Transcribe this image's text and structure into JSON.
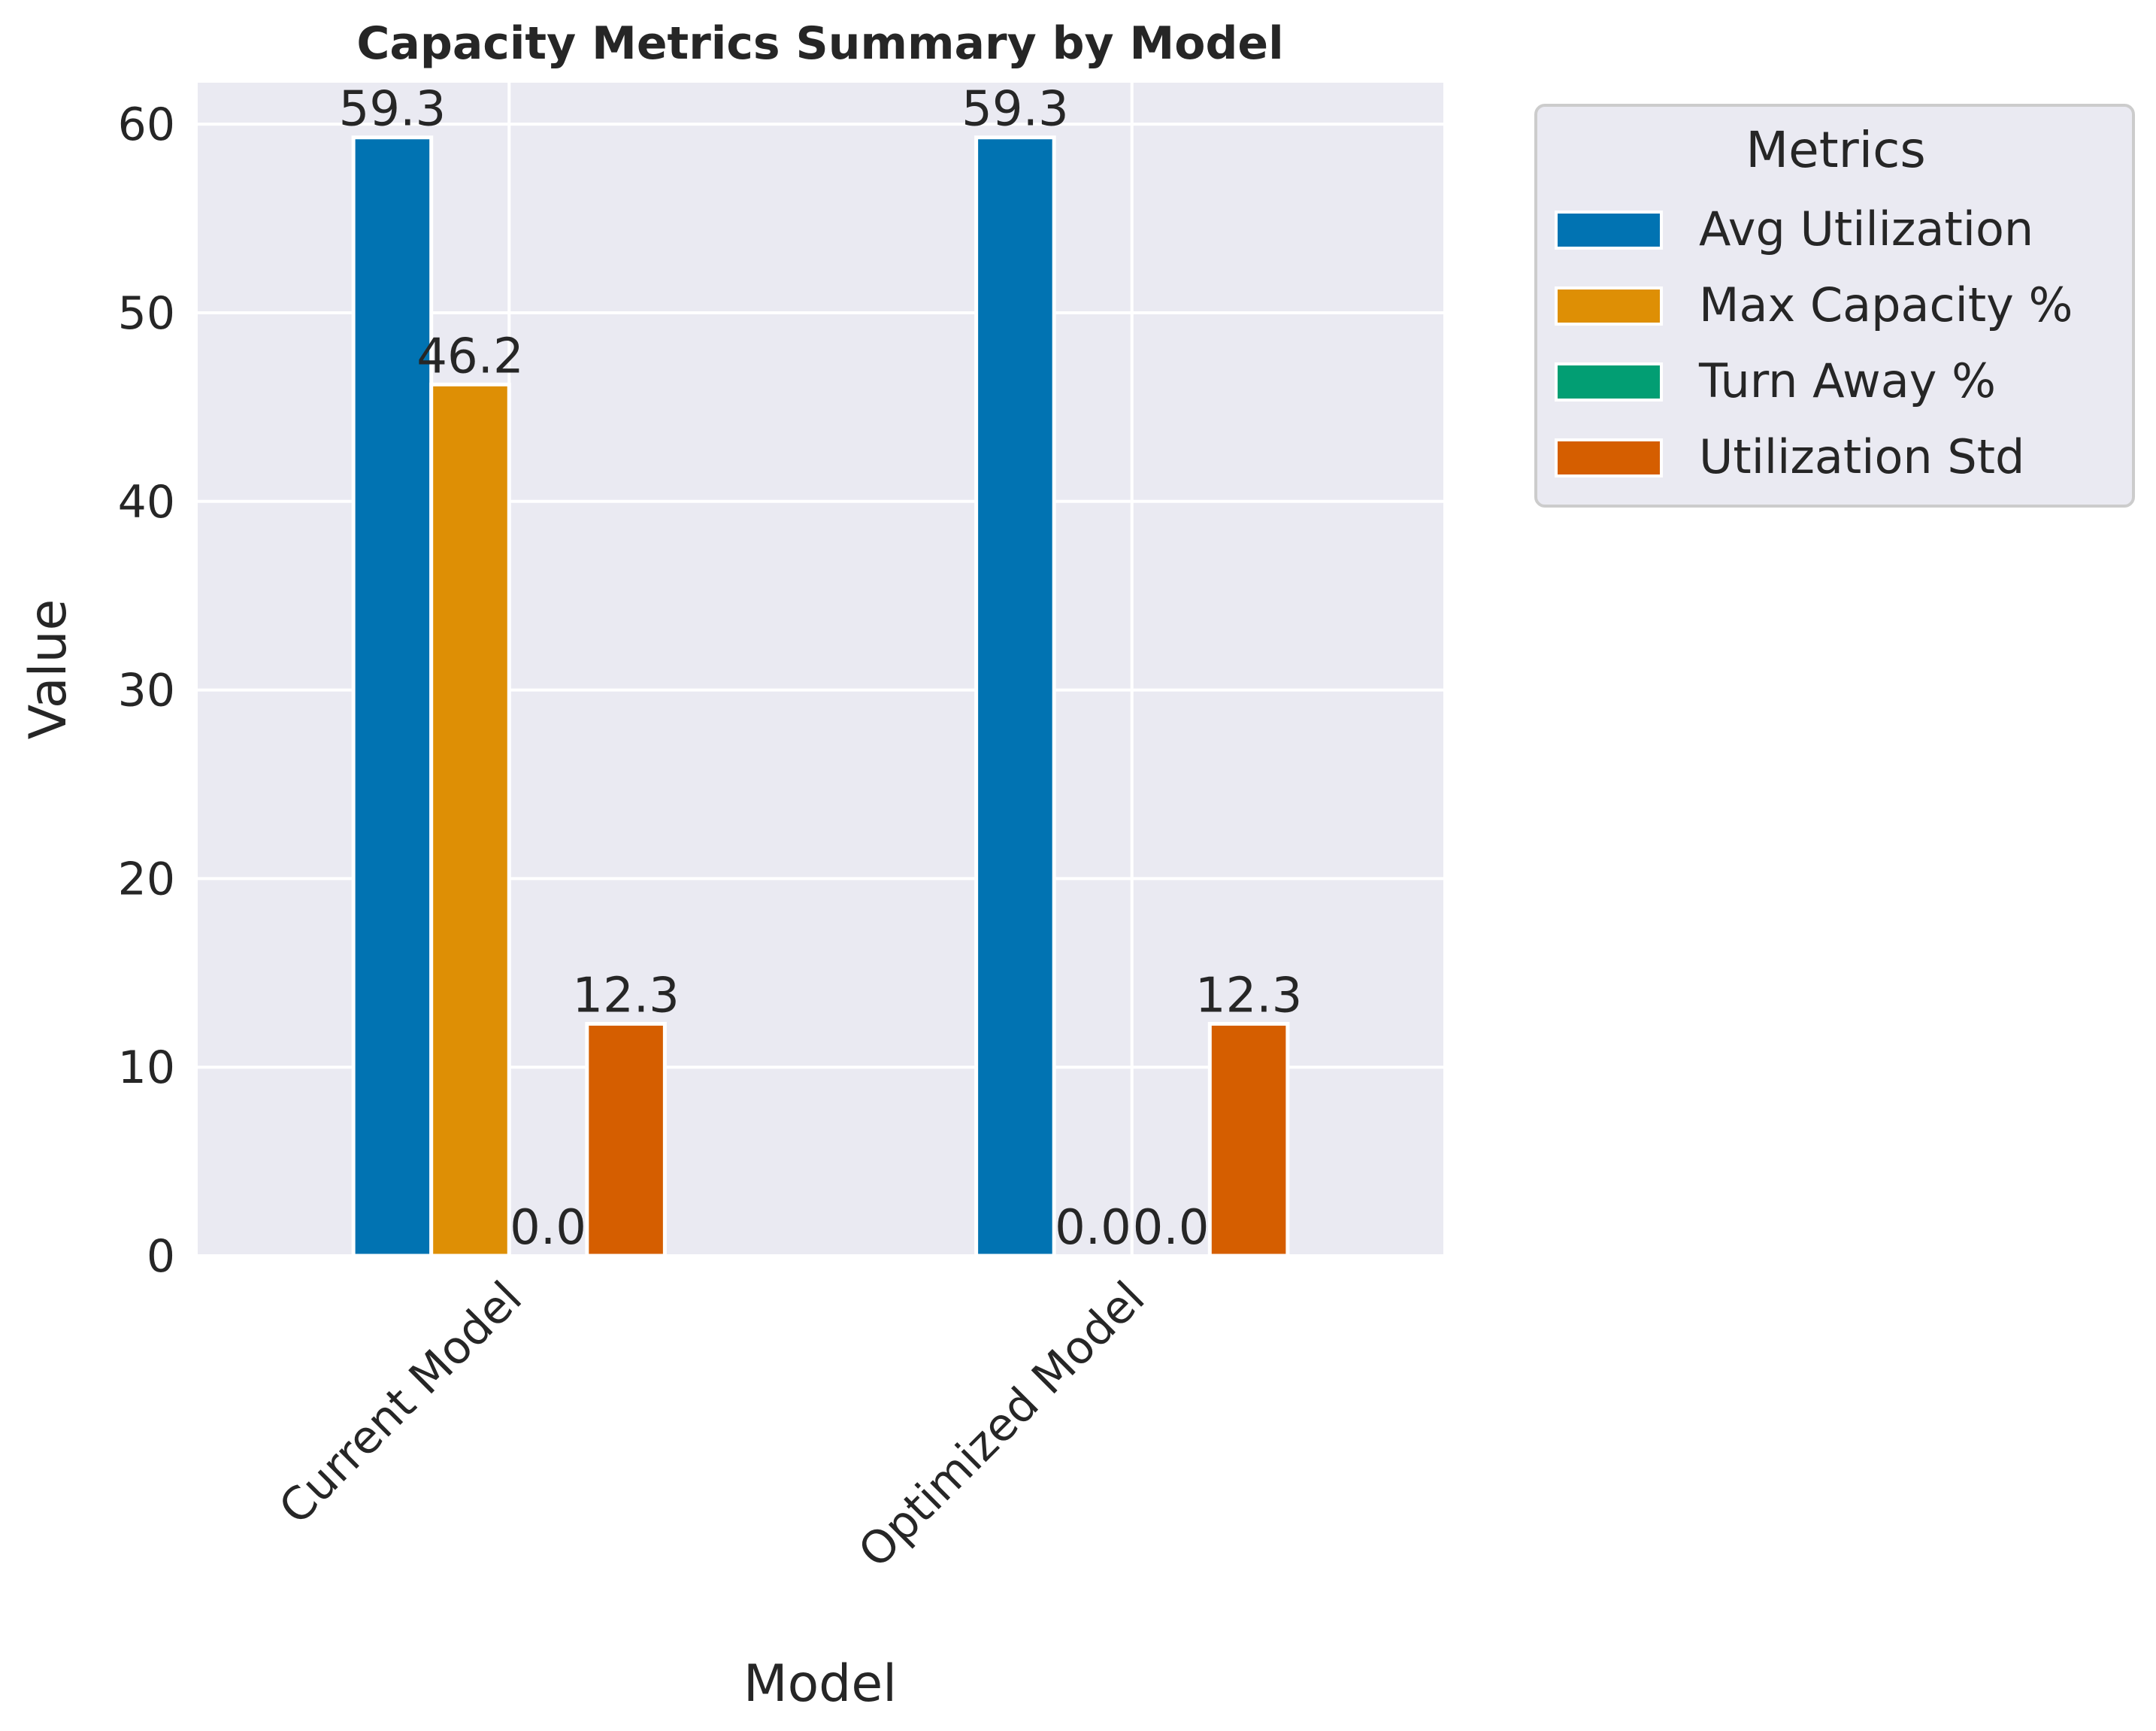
{
  "chart_data": {
    "type": "bar",
    "title": "Capacity Metrics Summary by Model",
    "xlabel": "Model",
    "ylabel": "Value",
    "categories": [
      "Current Model",
      "Optimized Model"
    ],
    "ylim": [
      0,
      62.2
    ],
    "yticks": [
      0,
      10,
      20,
      30,
      40,
      50,
      60
    ],
    "grid": true,
    "legend": {
      "title": "Metrics",
      "placement": "outside upper right"
    },
    "series": [
      {
        "name": "Avg Utilization",
        "color": "#0173b2",
        "values": [
          59.3,
          59.3
        ],
        "labels": [
          "59.3",
          "59.3"
        ]
      },
      {
        "name": "Max Capacity %",
        "color": "#de8f05",
        "values": [
          46.2,
          0.0
        ],
        "labels": [
          "46.2",
          "0.0"
        ]
      },
      {
        "name": "Turn Away %",
        "color": "#029e73",
        "values": [
          0.0,
          0.0
        ],
        "labels": [
          "0.0",
          "0.0"
        ]
      },
      {
        "name": "Utilization Std",
        "color": "#d55e00",
        "values": [
          12.3,
          12.3
        ],
        "labels": [
          "12.3",
          "12.3"
        ]
      }
    ]
  },
  "colors": {
    "plot_background": "#eaeaf2",
    "grid": "#ffffff",
    "text": "#262626"
  }
}
